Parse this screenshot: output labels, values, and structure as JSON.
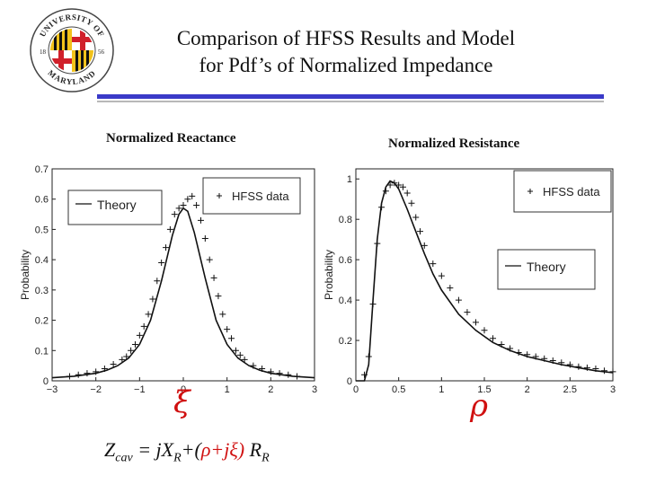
{
  "title": {
    "line1": "Comparison of HFSS Results and Model",
    "line2": "for Pdf’s of Normalized Impedance"
  },
  "logo": {
    "top_text": "UNIVERSITY OF",
    "bottom_text": "MARYLAND",
    "left_year": "18",
    "right_year": "56"
  },
  "headings": {
    "left": "Normalized Reactance",
    "right": "Normalized Resistance"
  },
  "symbols": {
    "left": "ξ",
    "right": "ρ"
  },
  "formula": {
    "part1": "Z",
    "part1_sub": "cav",
    "part2": " = jX",
    "part2_sub": "R",
    "part3": "+(",
    "rho": "ρ",
    "plus": "+j",
    "xi": "ξ",
    "close": ")",
    "part4": " R",
    "part4_sub": "R"
  },
  "colors": {
    "rule": "#3a3ac8",
    "symbol": "#d01010"
  },
  "chart_data": [
    {
      "type": "line",
      "name": "reactance",
      "xlabel": "",
      "ylabel": "Probability",
      "xlim": [
        -3,
        3
      ],
      "ylim": [
        0,
        0.7
      ],
      "xticks": [
        -3,
        -2,
        -1,
        0,
        1,
        2,
        3
      ],
      "xtick_labels": [
        "−3",
        "−2",
        "−1",
        "0",
        "1",
        "2",
        "3"
      ],
      "yticks": [
        0,
        0.1,
        0.2,
        0.3,
        0.4,
        0.5,
        0.6,
        0.7
      ],
      "ytick_labels": [
        "0",
        "0.1",
        "0.2",
        "0.3",
        "0.4",
        "0.5",
        "0.6",
        "0.7"
      ],
      "legend": [
        {
          "label": "Theory",
          "style": "line",
          "placement": "top-left"
        },
        {
          "label": "HFSS data",
          "style": "plus",
          "placement": "top-right"
        }
      ],
      "series": [
        {
          "name": "Theory",
          "style": "line",
          "x": [
            -3,
            -2.5,
            -2,
            -1.75,
            -1.5,
            -1.25,
            -1,
            -0.75,
            -0.5,
            -0.25,
            -0.1,
            0,
            0.1,
            0.25,
            0.5,
            0.75,
            1,
            1.25,
            1.5,
            1.75,
            2,
            2.5,
            3
          ],
          "y": [
            0.01,
            0.015,
            0.025,
            0.035,
            0.05,
            0.075,
            0.12,
            0.2,
            0.33,
            0.48,
            0.55,
            0.57,
            0.56,
            0.49,
            0.34,
            0.2,
            0.12,
            0.075,
            0.05,
            0.035,
            0.025,
            0.015,
            0.01
          ]
        },
        {
          "name": "HFSS data",
          "style": "plus",
          "x": [
            -2.6,
            -2.4,
            -2.2,
            -2.0,
            -1.8,
            -1.6,
            -1.4,
            -1.3,
            -1.2,
            -1.1,
            -1.0,
            -0.9,
            -0.8,
            -0.7,
            -0.6,
            -0.5,
            -0.4,
            -0.3,
            -0.2,
            -0.1,
            0.0,
            0.1,
            0.2,
            0.3,
            0.4,
            0.5,
            0.6,
            0.7,
            0.8,
            0.9,
            1.0,
            1.1,
            1.2,
            1.3,
            1.4,
            1.6,
            1.8,
            2.0,
            2.2,
            2.4,
            2.6
          ],
          "y": [
            0.015,
            0.02,
            0.025,
            0.03,
            0.04,
            0.055,
            0.07,
            0.08,
            0.1,
            0.12,
            0.15,
            0.18,
            0.22,
            0.27,
            0.33,
            0.39,
            0.44,
            0.5,
            0.55,
            0.57,
            0.58,
            0.6,
            0.61,
            0.58,
            0.53,
            0.47,
            0.4,
            0.34,
            0.28,
            0.22,
            0.17,
            0.14,
            0.1,
            0.085,
            0.07,
            0.05,
            0.04,
            0.03,
            0.025,
            0.02,
            0.015
          ]
        }
      ]
    },
    {
      "type": "line",
      "name": "resistance",
      "xlabel": "",
      "ylabel": "Probability",
      "xlim": [
        0,
        3
      ],
      "ylim": [
        0,
        1.05
      ],
      "xticks": [
        0,
        0.5,
        1,
        1.5,
        2,
        2.5,
        3
      ],
      "xtick_labels": [
        "0",
        "0.5",
        "1",
        "1.5",
        "2",
        "2.5",
        "3"
      ],
      "yticks": [
        0,
        0.2,
        0.4,
        0.6,
        0.8,
        1
      ],
      "ytick_labels": [
        "0",
        "0.2",
        "0.4",
        "0.6",
        "0.8",
        "1"
      ],
      "legend": [
        {
          "label": "HFSS data",
          "style": "plus",
          "placement": "top-right"
        },
        {
          "label": "Theory",
          "style": "line",
          "placement": "right"
        }
      ],
      "series": [
        {
          "name": "Theory",
          "style": "line",
          "x": [
            0,
            0.1,
            0.15,
            0.2,
            0.25,
            0.3,
            0.35,
            0.4,
            0.45,
            0.5,
            0.6,
            0.7,
            0.8,
            0.9,
            1.0,
            1.2,
            1.4,
            1.6,
            1.8,
            2.0,
            2.2,
            2.4,
            2.6,
            2.8,
            3.0
          ],
          "y": [
            0,
            0.0,
            0.08,
            0.4,
            0.7,
            0.88,
            0.96,
            0.99,
            0.98,
            0.95,
            0.85,
            0.74,
            0.63,
            0.53,
            0.45,
            0.33,
            0.25,
            0.19,
            0.15,
            0.12,
            0.1,
            0.08,
            0.065,
            0.05,
            0.04
          ]
        },
        {
          "name": "HFSS data",
          "style": "plus",
          "x": [
            0.1,
            0.15,
            0.2,
            0.25,
            0.3,
            0.35,
            0.4,
            0.45,
            0.5,
            0.55,
            0.6,
            0.65,
            0.7,
            0.75,
            0.8,
            0.9,
            1.0,
            1.1,
            1.2,
            1.3,
            1.4,
            1.5,
            1.6,
            1.7,
            1.8,
            1.9,
            2.0,
            2.1,
            2.2,
            2.3,
            2.4,
            2.5,
            2.6,
            2.7,
            2.8,
            2.9,
            3.0
          ],
          "y": [
            0.03,
            0.12,
            0.38,
            0.68,
            0.86,
            0.94,
            0.97,
            0.98,
            0.97,
            0.96,
            0.93,
            0.88,
            0.81,
            0.74,
            0.67,
            0.58,
            0.52,
            0.46,
            0.4,
            0.34,
            0.29,
            0.25,
            0.21,
            0.18,
            0.16,
            0.14,
            0.13,
            0.12,
            0.11,
            0.1,
            0.09,
            0.08,
            0.07,
            0.065,
            0.06,
            0.05,
            0.045
          ]
        }
      ]
    }
  ]
}
